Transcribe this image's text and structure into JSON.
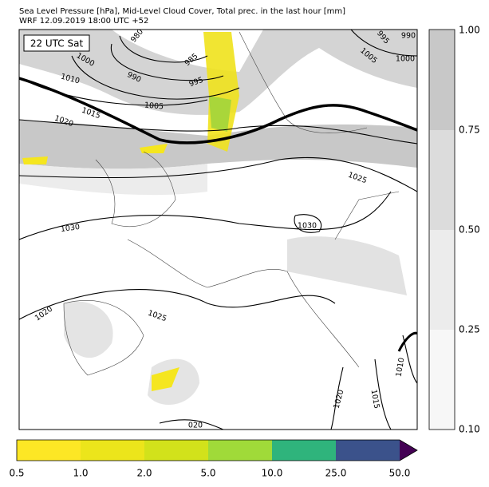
{
  "header": {
    "title": "Sea Level Pressure [hPa], Mid-Level Cloud Cover, Total prec. in the last hour [mm]",
    "subtitle": "WRF 12.09.2019 18:00 UTC +52"
  },
  "map": {
    "time_label": "22 UTC Sat",
    "isobar_labels": [
      "980",
      "985",
      "990",
      "995",
      "1000",
      "1005",
      "1010",
      "1015",
      "1020",
      "995",
      "990",
      "1005",
      "1000",
      "1025",
      "1030",
      "1030",
      "1025",
      "1020",
      "1020",
      "1015",
      "1010",
      "020"
    ]
  },
  "cloud_colorbar": {
    "tick_labels": [
      "1.00",
      "0.75",
      "0.50",
      "0.25",
      "0.10"
    ]
  },
  "precip_colorbar": {
    "tick_labels": [
      "0.5",
      "1.0",
      "2.0",
      "5.0",
      "10.0",
      "25.0",
      "50.0"
    ]
  }
}
